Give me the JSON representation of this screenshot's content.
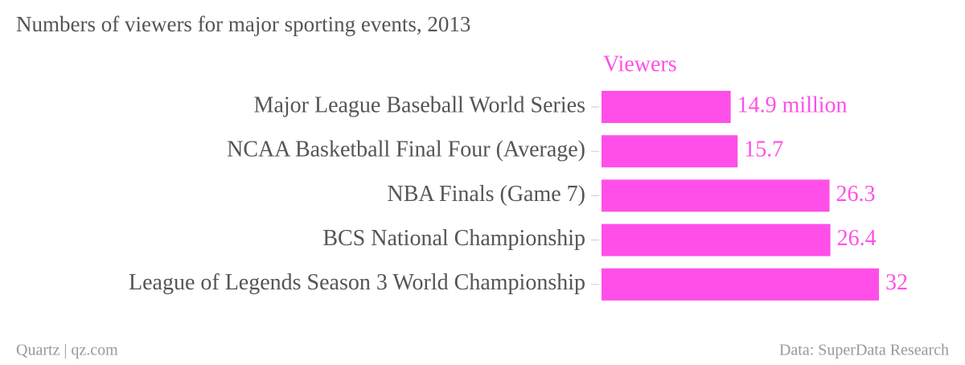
{
  "chart_data": {
    "type": "bar",
    "orientation": "horizontal",
    "title": "Numbers of viewers for major sporting events, 2013",
    "categories": [
      "Major League Baseball World Series",
      "NCAA Basketball Final Four (Average)",
      "NBA Finals (Game 7)",
      "BCS National Championship",
      "League of Legends Season 3 World Championship"
    ],
    "series": [
      {
        "name": "Viewers",
        "color": "#ff4fe8",
        "values": [
          14.9,
          15.7,
          26.3,
          26.4,
          32
        ],
        "value_labels": [
          "14.9 million",
          "15.7",
          "26.3",
          "26.4",
          "32"
        ]
      }
    ],
    "source": "Data: SuperData Research",
    "credit": "Quartz | qz.com"
  }
}
